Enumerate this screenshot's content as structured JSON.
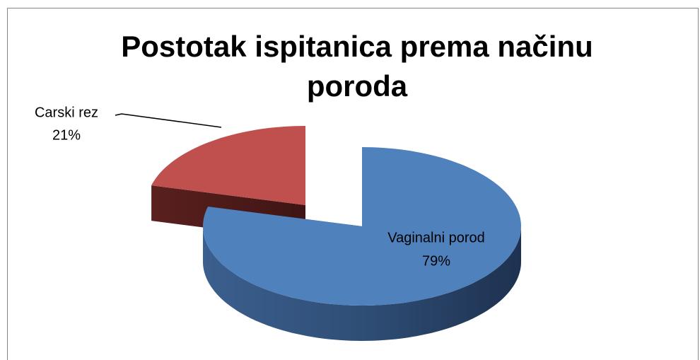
{
  "chart_data": {
    "type": "pie",
    "title": "Postotak ispitanica prema načinu poroda",
    "categories": [
      "Vaginalni porod",
      "Carski rez"
    ],
    "values": [
      79,
      21
    ],
    "value_labels": [
      "79%",
      "21%"
    ],
    "colors": [
      "#4f81bd",
      "#c0504d"
    ]
  }
}
